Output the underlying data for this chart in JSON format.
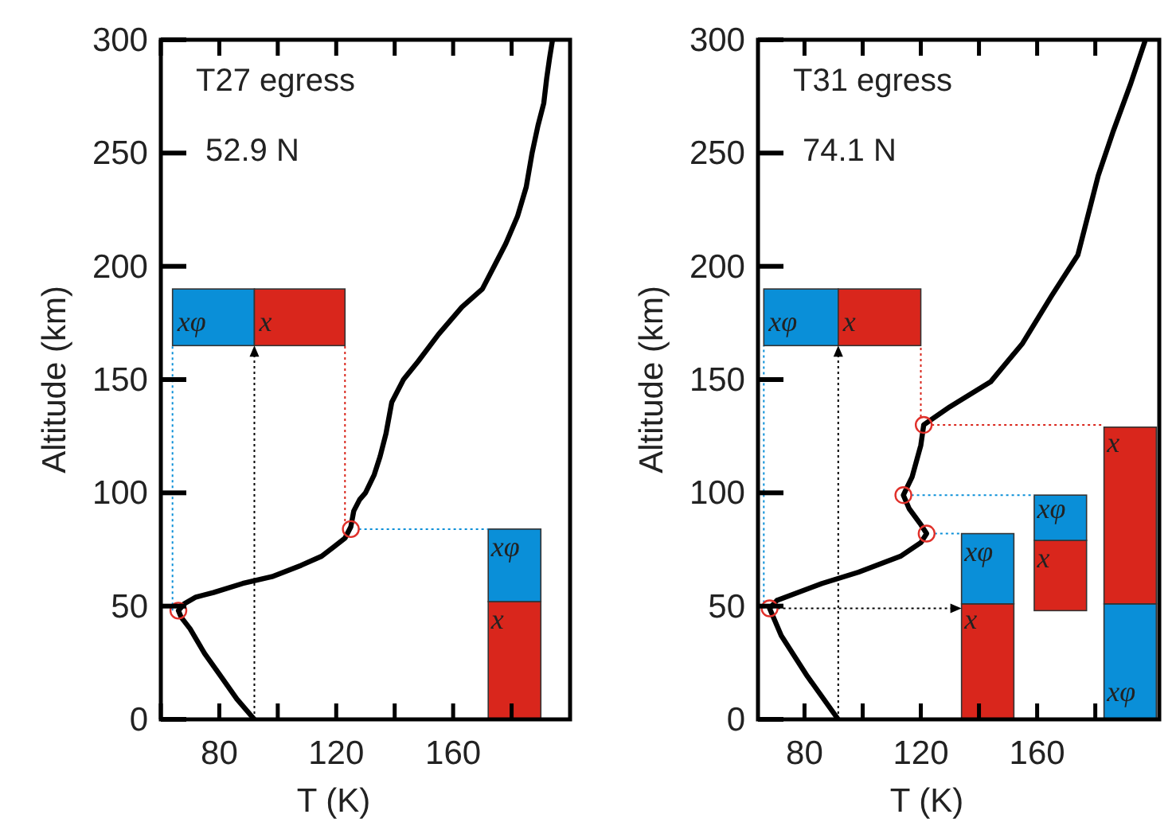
{
  "chart_data": [
    {
      "type": "line",
      "title": "T27 egress",
      "subtitle": "52.9 N",
      "xlabel": "T (K)",
      "ylabel": "Altitude (km)",
      "xlim": [
        60,
        200
      ],
      "ylim": [
        0,
        300
      ],
      "xticks": [
        {
          "value": 60,
          "label": null
        },
        80,
        {
          "value": 100,
          "label": null
        },
        120,
        {
          "value": 140,
          "label": null
        },
        160,
        {
          "value": 180,
          "label": null
        }
      ],
      "yticks": [
        0,
        50,
        100,
        150,
        200,
        250,
        300
      ],
      "stacked": true,
      "annotations": [
        "xφ",
        "x",
        {
          "text": "x",
          "x": 173,
          "y": 40
        },
        {
          "text": "xφ",
          "x": 173,
          "y": 72
        }
      ],
      "series": [
        {
          "color": "#000000",
          "x": [
            92,
            86,
            80,
            75,
            70,
            67,
            66,
            68,
            72,
            78,
            88,
            98,
            108,
            115,
            119,
            123,
            125,
            126,
            128,
            130,
            133,
            135,
            137,
            139,
            143,
            148,
            155,
            163,
            170,
            174,
            178,
            182,
            185,
            187,
            189,
            191,
            192,
            193,
            194
          ],
          "values": [
            0,
            9,
            20,
            29,
            40,
            45,
            48,
            51,
            54,
            56,
            60,
            63,
            68,
            72,
            76,
            80,
            85,
            92,
            97,
            100,
            108,
            116,
            126,
            140,
            150,
            158,
            170,
            182,
            190,
            200,
            210,
            222,
            235,
            250,
            262,
            272,
            283,
            292,
            300
          ]
        },
        {
          "type": "scatter",
          "marker": "circle",
          "color": "#e0302a",
          "x": [
            66,
            125
          ],
          "values": [
            48,
            84
          ]
        },
        {
          "type": "bar",
          "colors": [
            "#d9261c"
          ],
          "x": [
            181
          ],
          "base": [
            0
          ],
          "values": [
            52
          ]
        },
        {
          "type": "bar",
          "colors": [
            "#0a8fd8"
          ],
          "x": [
            181
          ],
          "values": [
            32
          ]
        }
      ]
    },
    {
      "type": "line",
      "title": "T31 egress",
      "subtitle": "74.1 N",
      "xlabel": "T (K)",
      "ylabel": "Altitude (km)",
      "xlim": [
        64,
        202
      ],
      "ylim": [
        0,
        300
      ],
      "xticks": [
        80,
        {
          "value": 100,
          "label": null
        },
        120,
        {
          "value": 140,
          "label": null
        },
        160,
        {
          "value": 180,
          "label": null
        }
      ],
      "yticks": [
        0,
        50,
        100,
        150,
        200,
        250,
        300
      ],
      "stacked": true,
      "annotations": [
        "xφ",
        "x",
        {
          "text": "x",
          "x": 135,
          "y": 40
        },
        {
          "text": "xφ",
          "x": 135,
          "y": 70
        },
        {
          "text": "x",
          "x": 160,
          "y": 67
        },
        {
          "text": "xφ",
          "x": 160,
          "y": 89
        },
        {
          "text": "xφ",
          "x": 184,
          "y": 8
        },
        {
          "text": "x",
          "x": 184,
          "y": 118
        }
      ],
      "series": [
        {
          "color": "#000000",
          "x": [
            91.6,
            81,
            72,
            68,
            70.5,
            86,
            98.6,
            113,
            120,
            122,
            120,
            116,
            114,
            117,
            120,
            121,
            130,
            144,
            155,
            165,
            174,
            181,
            186,
            192,
            197
          ],
          "values": [
            0,
            19,
            37,
            49,
            52.5,
            60,
            65,
            72,
            78,
            82,
            86,
            93,
            99,
            107,
            121,
            130,
            138,
            149,
            166,
            187,
            205,
            240,
            259,
            280,
            299
          ]
        },
        {
          "type": "scatter",
          "marker": "circle",
          "color": "#e0302a",
          "x": [
            68,
            122,
            114,
            121
          ],
          "values": [
            49,
            82,
            99,
            130
          ]
        },
        {
          "type": "bar",
          "colors": [
            "#d9261c",
            "#d9261c",
            "#0a8fd8"
          ],
          "x": [
            143,
            168,
            192
          ],
          "base": [
            0,
            48,
            0
          ],
          "values": [
            51,
            31,
            51
          ]
        },
        {
          "type": "bar",
          "colors": [
            "#0a8fd8",
            "#0a8fd8",
            "#d9261c"
          ],
          "x": [
            143,
            168,
            192
          ],
          "values": [
            31,
            20,
            78
          ]
        }
      ]
    }
  ]
}
